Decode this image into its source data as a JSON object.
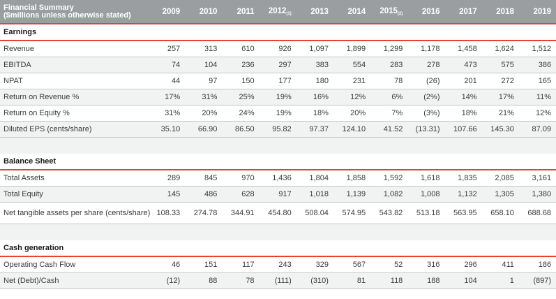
{
  "header": {
    "title_line1": "Financial Summary",
    "title_line2": "($millions unless otherwise stated)",
    "years": [
      {
        "year": "2009",
        "note": ""
      },
      {
        "year": "2010",
        "note": ""
      },
      {
        "year": "2011",
        "note": ""
      },
      {
        "year": "2012",
        "note": "(1)"
      },
      {
        "year": "2013",
        "note": ""
      },
      {
        "year": "2014",
        "note": ""
      },
      {
        "year": "2015",
        "note": "(2)"
      },
      {
        "year": "2016",
        "note": ""
      },
      {
        "year": "2017",
        "note": ""
      },
      {
        "year": "2018",
        "note": ""
      },
      {
        "year": "2019",
        "note": ""
      }
    ]
  },
  "sections": [
    {
      "title": "Earnings",
      "rows": [
        {
          "label": "Revenue",
          "values": [
            "257",
            "313",
            "610",
            "926",
            "1,097",
            "1,899",
            "1,299",
            "1,178",
            "1,458",
            "1,624",
            "1,512"
          ]
        },
        {
          "label": "EBITDA",
          "values": [
            "74",
            "104",
            "236",
            "297",
            "383",
            "554",
            "283",
            "278",
            "473",
            "575",
            "386"
          ]
        },
        {
          "label": "NPAT",
          "values": [
            "44",
            "97",
            "150",
            "177",
            "180",
            "231",
            "78",
            "(26)",
            "201",
            "272",
            "165"
          ]
        },
        {
          "label": "Return on Revenue %",
          "values": [
            "17%",
            "31%",
            "25%",
            "19%",
            "16%",
            "12%",
            "6%",
            "(2%)",
            "14%",
            "17%",
            "11%"
          ]
        },
        {
          "label": "Return on Equity %",
          "values": [
            "31%",
            "20%",
            "24%",
            "19%",
            "18%",
            "20%",
            "7%",
            "(3%)",
            "18%",
            "21%",
            "12%"
          ]
        },
        {
          "label": "Diluted EPS (cents/share)",
          "values": [
            "35.10",
            "66.90",
            "86.50",
            "95.82",
            "97.37",
            "124.10",
            "41.52",
            "(13.31)",
            "107.66",
            "145.30",
            "87.09"
          ]
        }
      ]
    },
    {
      "title": "Balance Sheet",
      "rows": [
        {
          "label": "Total Assets",
          "values": [
            "289",
            "845",
            "970",
            "1,436",
            "1,804",
            "1,858",
            "1,592",
            "1,618",
            "1,835",
            "2,085",
            "3,161"
          ]
        },
        {
          "label": "Total Equity",
          "values": [
            "145",
            "486",
            "628",
            "917",
            "1,018",
            "1,139",
            "1,082",
            "1,008",
            "1,132",
            "1,305",
            "1,380"
          ]
        },
        {
          "label": "Net tangible assets per share (cents/share)",
          "tall": true,
          "values": [
            "108.33",
            "274.78",
            "344.91",
            "454.80",
            "508.04",
            "574.95",
            "543.82",
            "513.18",
            "563.95",
            "658.10",
            "688.68"
          ]
        }
      ]
    },
    {
      "title": "Cash generation",
      "rows": [
        {
          "label": "Operating Cash Flow",
          "values": [
            "46",
            "151",
            "117",
            "243",
            "329",
            "567",
            "52",
            "316",
            "296",
            "411",
            "186"
          ]
        },
        {
          "label": "Net (Debt)/Cash",
          "values": [
            "(12)",
            "88",
            "78",
            "(111)",
            "(310)",
            "81",
            "118",
            "188",
            "104",
            "1",
            "(897)"
          ]
        }
      ]
    }
  ],
  "colors": {
    "header_bg": "#9b9ea1",
    "accent_red": "#e8412c",
    "zebra": "#f1f2f2",
    "rule": "#c4c6c8"
  }
}
